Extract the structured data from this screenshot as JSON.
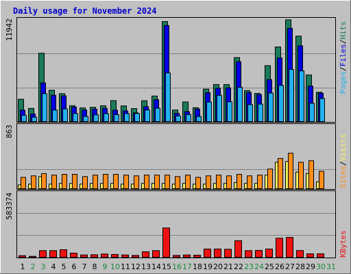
{
  "title": "Daily usage for November 2024",
  "colors": {
    "hits": "#1a7a5a",
    "files": "#0000e0",
    "pages": "#22b0f0",
    "visits": "#f0f060",
    "sites": "#ff8c1a",
    "kbytes": "#ee1111",
    "weekend_day": "#1a8a3a",
    "weekday_day": "#000000"
  },
  "chart_data": [
    {
      "type": "bar",
      "panel": "hits-files-pages",
      "max_label": "11942",
      "ylim": [
        0,
        11942
      ],
      "legend": {
        "pages": "Pages",
        "files": "Files",
        "hits": "Hits",
        "sep": "/"
      },
      "categories": [
        "1",
        "2",
        "3",
        "4",
        "5",
        "6",
        "7",
        "8",
        "9",
        "10",
        "11",
        "12",
        "13",
        "14",
        "15",
        "16",
        "17",
        "18",
        "19",
        "20",
        "21",
        "22",
        "23",
        "24",
        "25",
        "26",
        "27",
        "28",
        "29",
        "30",
        "31"
      ],
      "series": [
        {
          "name": "Hits",
          "values": [
            2640,
            1590,
            7920,
            3680,
            3280,
            1900,
            1650,
            1720,
            1890,
            2480,
            1880,
            1570,
            2470,
            3010,
            11550,
            1400,
            2330,
            1670,
            3800,
            4330,
            4320,
            7420,
            3640,
            3310,
            6500,
            8640,
            11750,
            9880,
            5430,
            3440,
            0
          ]
        },
        {
          "name": "Files",
          "values": [
            1390,
            950,
            4510,
            3100,
            3030,
            1750,
            1410,
            1510,
            1590,
            1390,
            1310,
            1080,
            1790,
            2600,
            11100,
            1030,
            1220,
            1520,
            3400,
            3910,
            3950,
            6960,
            3410,
            3180,
            4900,
            7380,
            10780,
            8770,
            4150,
            3330,
            0
          ]
        },
        {
          "name": "Pages",
          "values": [
            800,
            580,
            3290,
            1400,
            1530,
            1010,
            670,
            850,
            990,
            870,
            990,
            1010,
            1410,
            1610,
            5660,
            730,
            880,
            660,
            2320,
            3090,
            2350,
            4000,
            2020,
            2080,
            3350,
            4230,
            6060,
            5890,
            2180,
            2720,
            0
          ]
        }
      ]
    },
    {
      "type": "bar",
      "panel": "visits-sites",
      "max_label": "863",
      "ylim": [
        0,
        863
      ],
      "legend": {
        "sites": "Sites",
        "visits": "Visits",
        "sep": "/"
      },
      "categories": [
        "1",
        "2",
        "3",
        "4",
        "5",
        "6",
        "7",
        "8",
        "9",
        "10",
        "11",
        "12",
        "13",
        "14",
        "15",
        "16",
        "17",
        "18",
        "19",
        "20",
        "21",
        "22",
        "23",
        "24",
        "25",
        "26",
        "27",
        "28",
        "29",
        "30",
        "31"
      ],
      "series": [
        {
          "name": "Visits",
          "values": [
            60,
            70,
            170,
            70,
            80,
            80,
            70,
            80,
            80,
            80,
            70,
            70,
            80,
            80,
            80,
            70,
            80,
            70,
            70,
            80,
            80,
            90,
            80,
            80,
            190,
            360,
            370,
            230,
            210,
            100,
            0
          ]
        },
        {
          "name": "Sites",
          "values": [
            160,
            180,
            210,
            190,
            200,
            200,
            170,
            190,
            200,
            200,
            190,
            180,
            190,
            190,
            190,
            170,
            190,
            160,
            180,
            190,
            180,
            200,
            180,
            190,
            270,
            410,
            480,
            360,
            380,
            240,
            0
          ]
        }
      ]
    },
    {
      "type": "bar",
      "panel": "kbytes",
      "max_label": "583374",
      "ylim": [
        0,
        583374
      ],
      "legend": {
        "kbytes": "KBytes"
      },
      "categories": [
        "1",
        "2",
        "3",
        "4",
        "5",
        "6",
        "7",
        "8",
        "9",
        "10",
        "11",
        "12",
        "13",
        "14",
        "15",
        "16",
        "17",
        "18",
        "19",
        "20",
        "21",
        "22",
        "23",
        "24",
        "25",
        "26",
        "27",
        "28",
        "29",
        "30",
        "31"
      ],
      "series": [
        {
          "name": "KBytes",
          "values": [
            20000,
            14000,
            64000,
            64000,
            72000,
            42000,
            26000,
            28000,
            34000,
            30000,
            26000,
            22000,
            54000,
            64000,
            263000,
            22000,
            26000,
            24000,
            78000,
            78000,
            76000,
            151000,
            64000,
            66000,
            78000,
            173000,
            180000,
            65000,
            36000,
            36000,
            0
          ]
        }
      ]
    }
  ],
  "days": [
    "1",
    "2",
    "3",
    "4",
    "5",
    "6",
    "7",
    "8",
    "9",
    "10",
    "11",
    "12",
    "13",
    "14",
    "15",
    "16",
    "17",
    "18",
    "19",
    "20",
    "21",
    "22",
    "23",
    "24",
    "25",
    "26",
    "27",
    "28",
    "29",
    "30",
    "31"
  ],
  "weekend_days": [
    "2",
    "3",
    "9",
    "10",
    "16",
    "17",
    "23",
    "24",
    "30",
    "31"
  ]
}
